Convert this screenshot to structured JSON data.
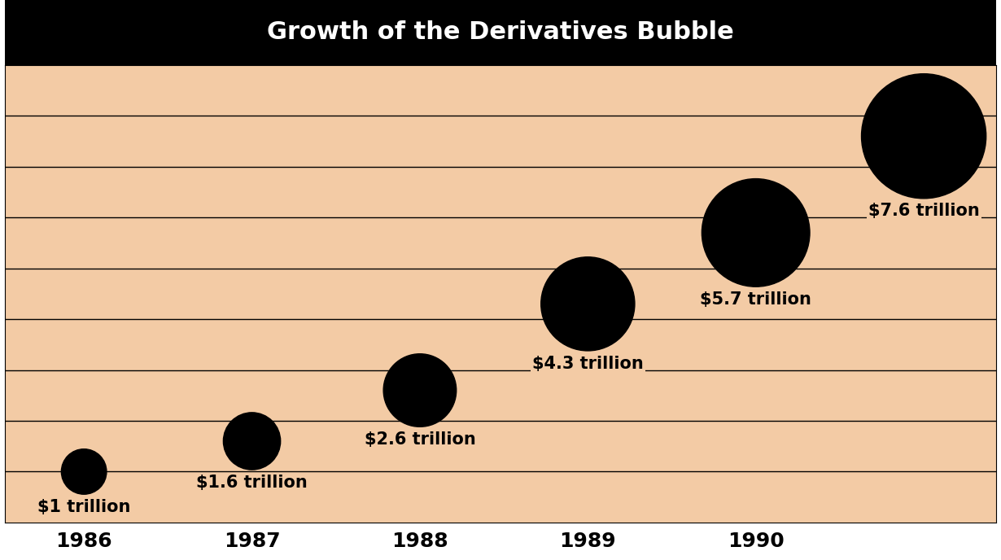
{
  "chart_data": {
    "type": "bubble",
    "title": "Growth of the Derivatives Bubble",
    "categories": [
      "1986",
      "1987",
      "1988",
      "1989",
      "1990",
      null
    ],
    "values": [
      1,
      1.6,
      2.6,
      4.3,
      5.7,
      7.6
    ],
    "value_labels": [
      "$1 trillion",
      "$1.6 trillion",
      "$2.6 trillion",
      "$4.3 trillion",
      "$5.7 trillion",
      "$7.6 trillion"
    ],
    "color": "#000000",
    "ylim": [
      0,
      9
    ],
    "yticks": [
      1,
      2,
      3,
      4,
      5,
      6,
      7,
      8
    ],
    "grid": true,
    "data_labels": true,
    "tick_labels": "x"
  }
}
